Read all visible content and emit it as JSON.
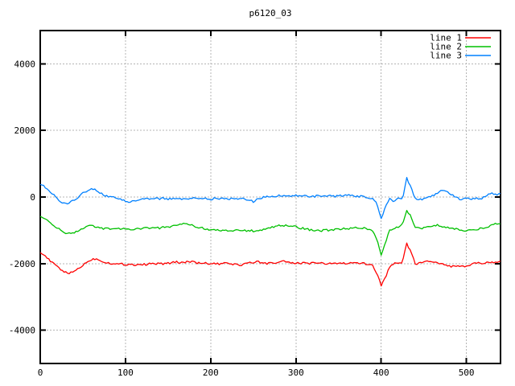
{
  "chart_data": {
    "type": "line",
    "title": "p6120_03",
    "xlabel": "",
    "ylabel": "",
    "xlim": [
      0,
      540
    ],
    "ylim": [
      -5000,
      5000
    ],
    "xticks": [
      0,
      100,
      200,
      300,
      400,
      500
    ],
    "yticks": [
      -4000,
      -2000,
      0,
      2000,
      4000
    ],
    "grid": "dotted",
    "grid_color": "#b4b4b4",
    "border_color": "#000000",
    "background": "#ffffff",
    "legend_position": "top-right-inside",
    "noise_amplitude": 30,
    "x_start": 0,
    "x_step": 5,
    "series": [
      {
        "name": "line 1",
        "color": "#ff0000",
        "values": [
          -1640,
          -1750,
          -1880,
          -1990,
          -2090,
          -2190,
          -2270,
          -2290,
          -2230,
          -2140,
          -2050,
          -1950,
          -1880,
          -1850,
          -1900,
          -1950,
          -1980,
          -2000,
          -2020,
          -2010,
          -2030,
          -2010,
          -2040,
          -2020,
          -2030,
          -2020,
          -2000,
          -2010,
          -1990,
          -2010,
          -1990,
          -1970,
          -1950,
          -1970,
          -1950,
          -1940,
          -1960,
          -1980,
          -2000,
          -1990,
          -2010,
          -2000,
          -2020,
          -2000,
          -1990,
          -2010,
          -2030,
          -2060,
          -2000,
          -1960,
          -2000,
          -1940,
          -1980,
          -2000,
          -1960,
          -2000,
          -1950,
          -1900,
          -1960,
          -2000,
          -1980,
          -2000,
          -1960,
          -2000,
          -1980,
          -2000,
          -1990,
          -2010,
          -2000,
          -1980,
          -2000,
          -1990,
          -2000,
          -1980,
          -2000,
          -1990,
          -2000,
          -2010,
          -2050,
          -2300,
          -2650,
          -2400,
          -2100,
          -2000,
          -1980,
          -1950,
          -1400,
          -1650,
          -2000,
          -1990,
          -1960,
          -1920,
          -1940,
          -1990,
          -2010,
          -2040,
          -2070,
          -2090,
          -2080,
          -2100,
          -2080,
          -2040,
          -2000,
          -1980,
          -2000,
          -1960,
          -1940,
          -1970,
          -1910
        ]
      },
      {
        "name": "line 2",
        "color": "#00c000",
        "values": [
          -560,
          -650,
          -760,
          -850,
          -940,
          -1010,
          -1070,
          -1090,
          -1060,
          -1010,
          -950,
          -900,
          -860,
          -880,
          -920,
          -950,
          -940,
          -960,
          -950,
          -970,
          -960,
          -980,
          -960,
          -940,
          -950,
          -930,
          -940,
          -920,
          -930,
          -910,
          -900,
          -880,
          -850,
          -820,
          -800,
          -830,
          -870,
          -900,
          -930,
          -960,
          -980,
          -1000,
          -990,
          -1010,
          -1000,
          -1020,
          -1000,
          -990,
          -1010,
          -1000,
          -1020,
          -1000,
          -980,
          -960,
          -920,
          -880,
          -850,
          -860,
          -840,
          -870,
          -900,
          -930,
          -950,
          -980,
          -1000,
          -990,
          -1010,
          -990,
          -1000,
          -980,
          -970,
          -950,
          -940,
          -950,
          -930,
          -950,
          -940,
          -960,
          -1000,
          -1250,
          -1720,
          -1350,
          -1000,
          -950,
          -900,
          -820,
          -380,
          -600,
          -900,
          -950,
          -920,
          -890,
          -860,
          -840,
          -870,
          -900,
          -930,
          -950,
          -980,
          -1000,
          -1010,
          -990,
          -970,
          -950,
          -930,
          -890,
          -840,
          -800,
          -780
        ]
      },
      {
        "name": "line 3",
        "color": "#0080ff",
        "values": [
          400,
          300,
          200,
          100,
          -40,
          -160,
          -210,
          -160,
          -80,
          10,
          110,
          200,
          240,
          210,
          130,
          60,
          10,
          -10,
          -40,
          -70,
          -110,
          -150,
          -120,
          -90,
          -70,
          -50,
          -60,
          -40,
          -55,
          -35,
          -60,
          -45,
          -35,
          -55,
          -45,
          -60,
          -40,
          -55,
          -65,
          -50,
          -60,
          -45,
          -55,
          -40,
          -60,
          -50,
          -45,
          -60,
          -50,
          -80,
          -140,
          -70,
          -20,
          10,
          30,
          20,
          40,
          30,
          50,
          20,
          40,
          10,
          30,
          20,
          10,
          30,
          20,
          40,
          30,
          20,
          40,
          30,
          50,
          40,
          30,
          20,
          10,
          -20,
          -60,
          -200,
          -650,
          -300,
          -60,
          -120,
          -40,
          -80,
          560,
          300,
          -60,
          -90,
          -40,
          -20,
          40,
          110,
          170,
          180,
          110,
          30,
          -40,
          -70,
          -50,
          -60,
          -40,
          -50,
          -20,
          60,
          100,
          60,
          80
        ]
      }
    ]
  }
}
